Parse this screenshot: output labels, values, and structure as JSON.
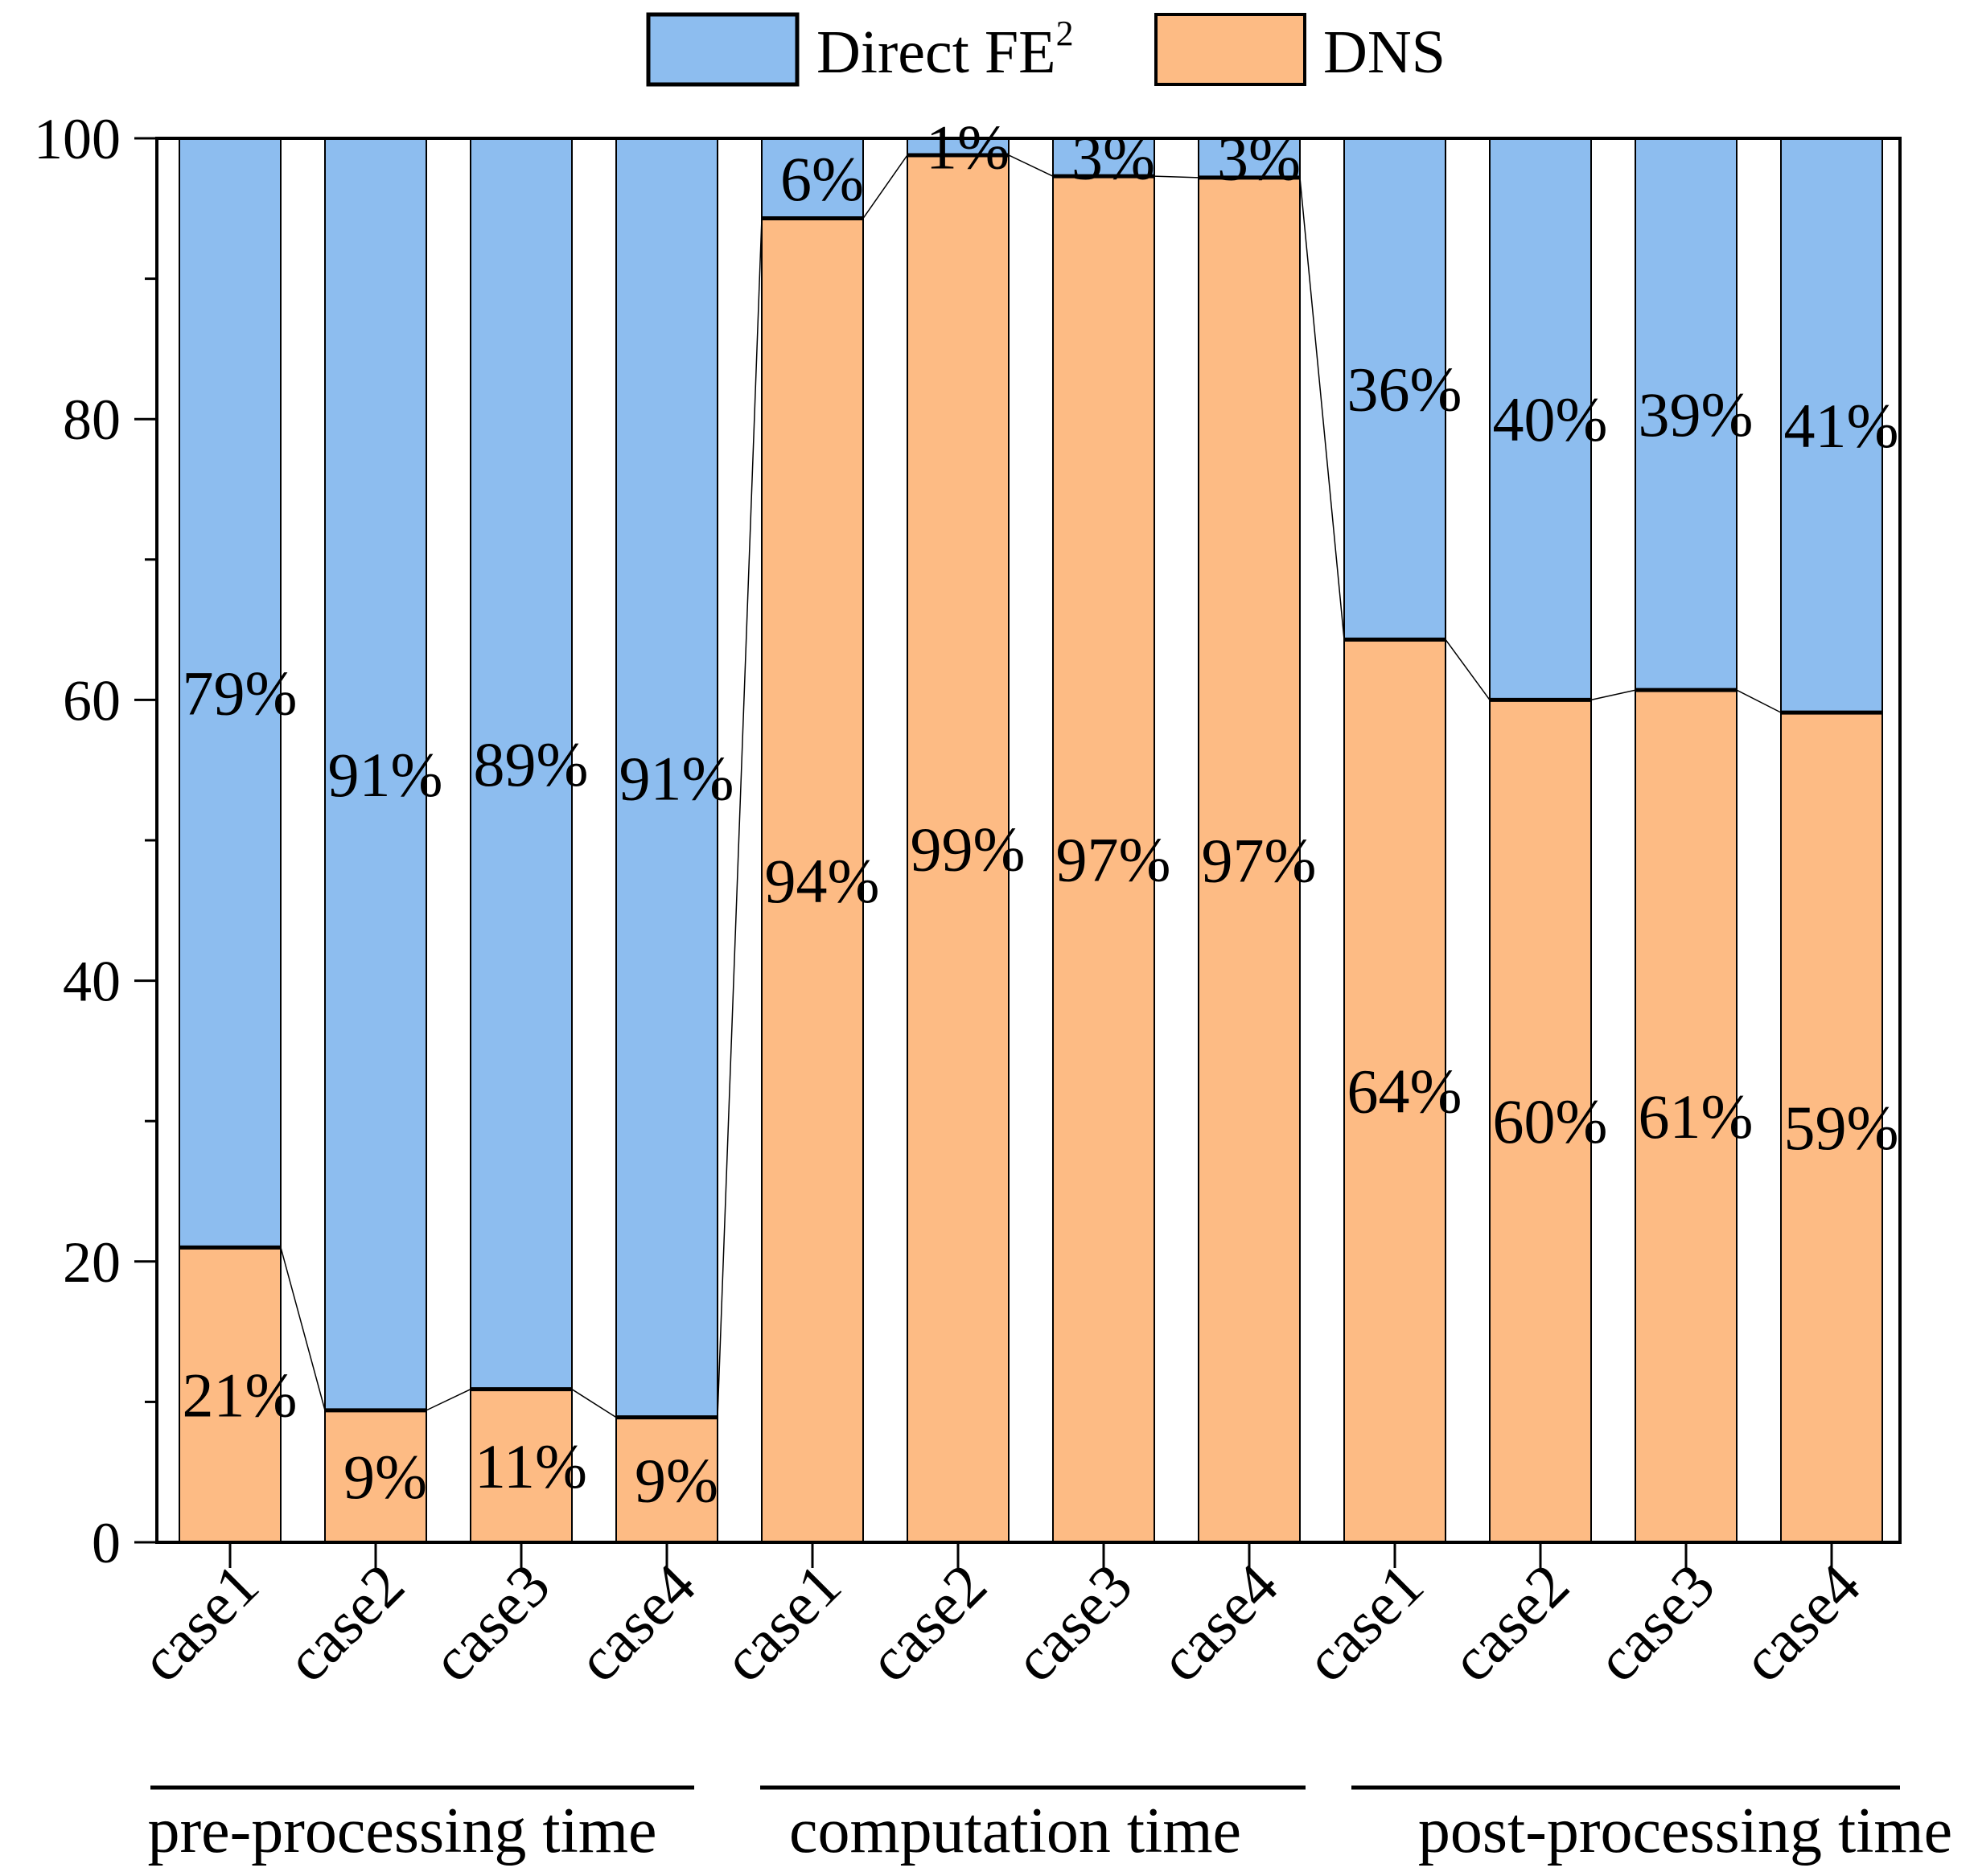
{
  "chart_data": {
    "type": "bar",
    "stacked": true,
    "categories": [
      "case1",
      "case2",
      "case3",
      "case4",
      "case1",
      "case2",
      "case3",
      "case4",
      "case1",
      "case2",
      "case3",
      "case4"
    ],
    "groups": [
      {
        "label": "pre-processing time",
        "categories": [
          "case1",
          "case2",
          "case3",
          "case4"
        ]
      },
      {
        "label": "computation time",
        "categories": [
          "case1",
          "case2",
          "case3",
          "case4"
        ]
      },
      {
        "label": "post-processing time",
        "categories": [
          "case1",
          "case2",
          "case3",
          "case4"
        ]
      }
    ],
    "series": [
      {
        "name": "DNS",
        "color": "#FDBB84",
        "values": [
          21,
          9.4,
          10.9,
          8.9,
          94.3,
          98.8,
          97.3,
          97.2,
          64.3,
          60,
          60.7,
          59.1
        ],
        "labels": [
          "21%",
          "9%",
          "11%",
          "9%",
          "94%",
          "99%",
          "97%",
          "97%",
          "64%",
          "60%",
          "61%",
          "59%"
        ]
      },
      {
        "name": "Direct FE",
        "name_sup": "2",
        "color": "#8DBDEF",
        "values": [
          79,
          90.6,
          89.1,
          91.1,
          5.7,
          1.2,
          2.7,
          2.8,
          35.7,
          40,
          39.3,
          40.9
        ],
        "labels": [
          "79%",
          "91%",
          "89%",
          "91%",
          "6%",
          "1%",
          "3%",
          "3%",
          "36%",
          "40%",
          "39%",
          "41%"
        ]
      }
    ],
    "yticks": [
      "0",
      "20",
      "40",
      "60",
      "80",
      "100"
    ],
    "ylim": [
      0,
      100
    ],
    "legend_position": "top",
    "grid": false
  }
}
